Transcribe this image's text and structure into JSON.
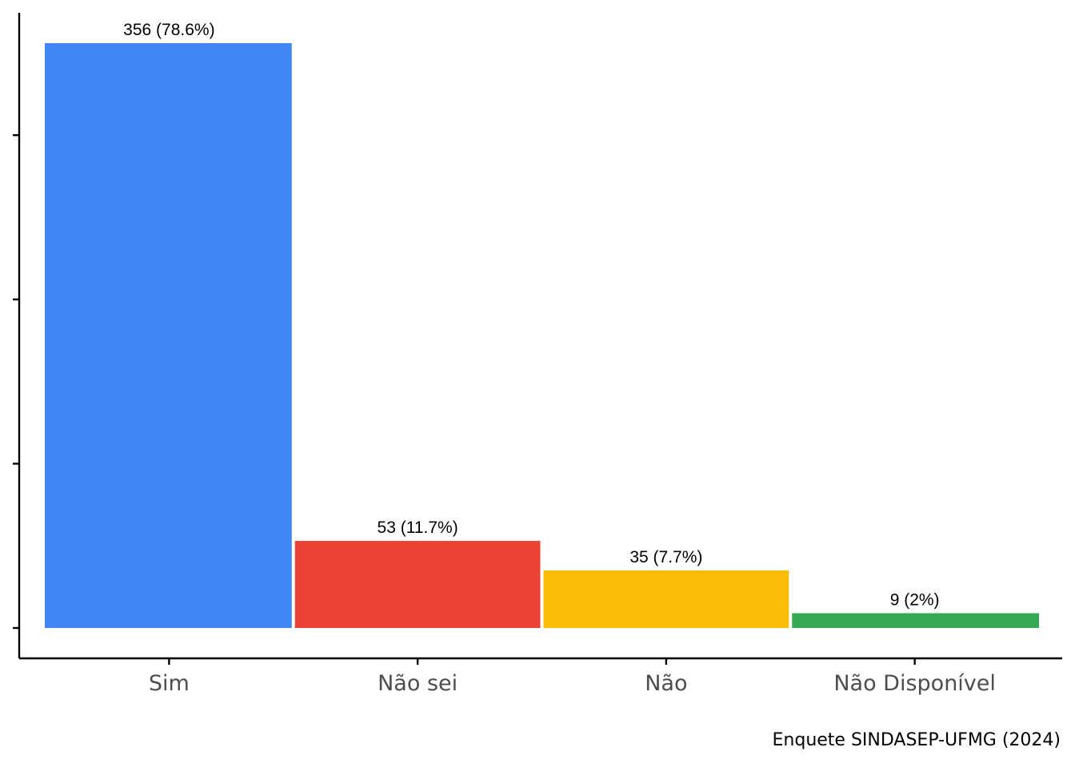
{
  "chart_data": {
    "type": "bar",
    "categories": [
      "Sim",
      "Não sei",
      "Não",
      "Não Disponível"
    ],
    "values": [
      356,
      53,
      35,
      9
    ],
    "data_labels": [
      "356 (78.6%)",
      "53 (11.7%)",
      "35 (7.7%)",
      "9 (2%)"
    ],
    "colors": [
      "#4285F4",
      "#EA4335",
      "#FBBC05",
      "#34A853"
    ],
    "title": "",
    "xlabel": "",
    "ylabel": "",
    "ylim": [
      0,
      356
    ],
    "grid": false,
    "legend": "none",
    "caption": "Enquete SINDASEP-UFMG (2024)"
  }
}
